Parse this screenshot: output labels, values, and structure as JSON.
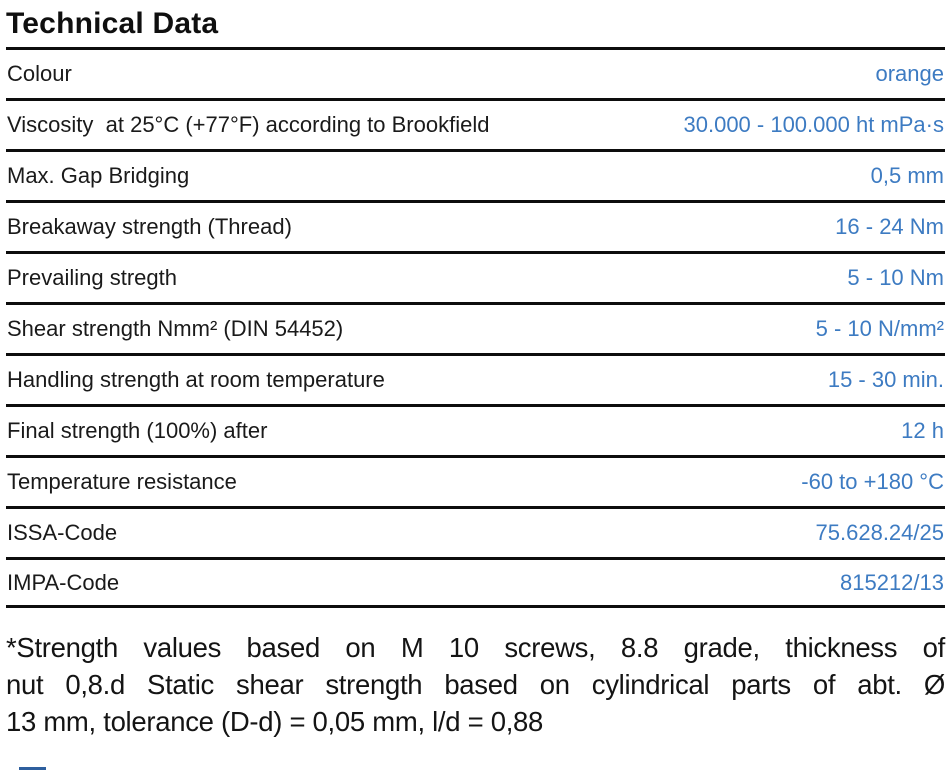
{
  "title": "Technical Data",
  "accent_color": "#3d7bc2",
  "table": {
    "rows": [
      {
        "label": "Colour",
        "value": "orange"
      },
      {
        "label": "Viscosity  at 25°C (+77°F) according to Brookfield",
        "value": "30.000 - 100.000 ht mPa·s"
      },
      {
        "label": "Max. Gap Bridging",
        "value": "0,5 mm"
      },
      {
        "label": "Breakaway strength (Thread)",
        "value": "16 - 24 Nm"
      },
      {
        "label": "Prevailing stregth",
        "value": "5 - 10 Nm"
      },
      {
        "label": "Shear strength Nmm² (DIN 54452)",
        "value": "5 - 10 N/mm²"
      },
      {
        "label": "Handling strength at room temperature",
        "value": "15 - 30 min."
      },
      {
        "label": "Final strength (100%) after",
        "value": "12 h"
      },
      {
        "label": "Temperature resistance",
        "value": "-60 to +180 °C"
      },
      {
        "label": "ISSA-Code",
        "value": "75.628.24/25"
      },
      {
        "label": "IMPA-Code",
        "value": "815212/13"
      }
    ]
  },
  "footnote": {
    "lines": [
      "*Strength values based on M 10 screws, 8.8 grade, thickness of",
      "nut 0,8.d Static shear strength based on cylindrical parts of abt. Ø",
      "13 mm, tolerance (D-d) = 0,05 mm, l/d = 0,88"
    ]
  }
}
